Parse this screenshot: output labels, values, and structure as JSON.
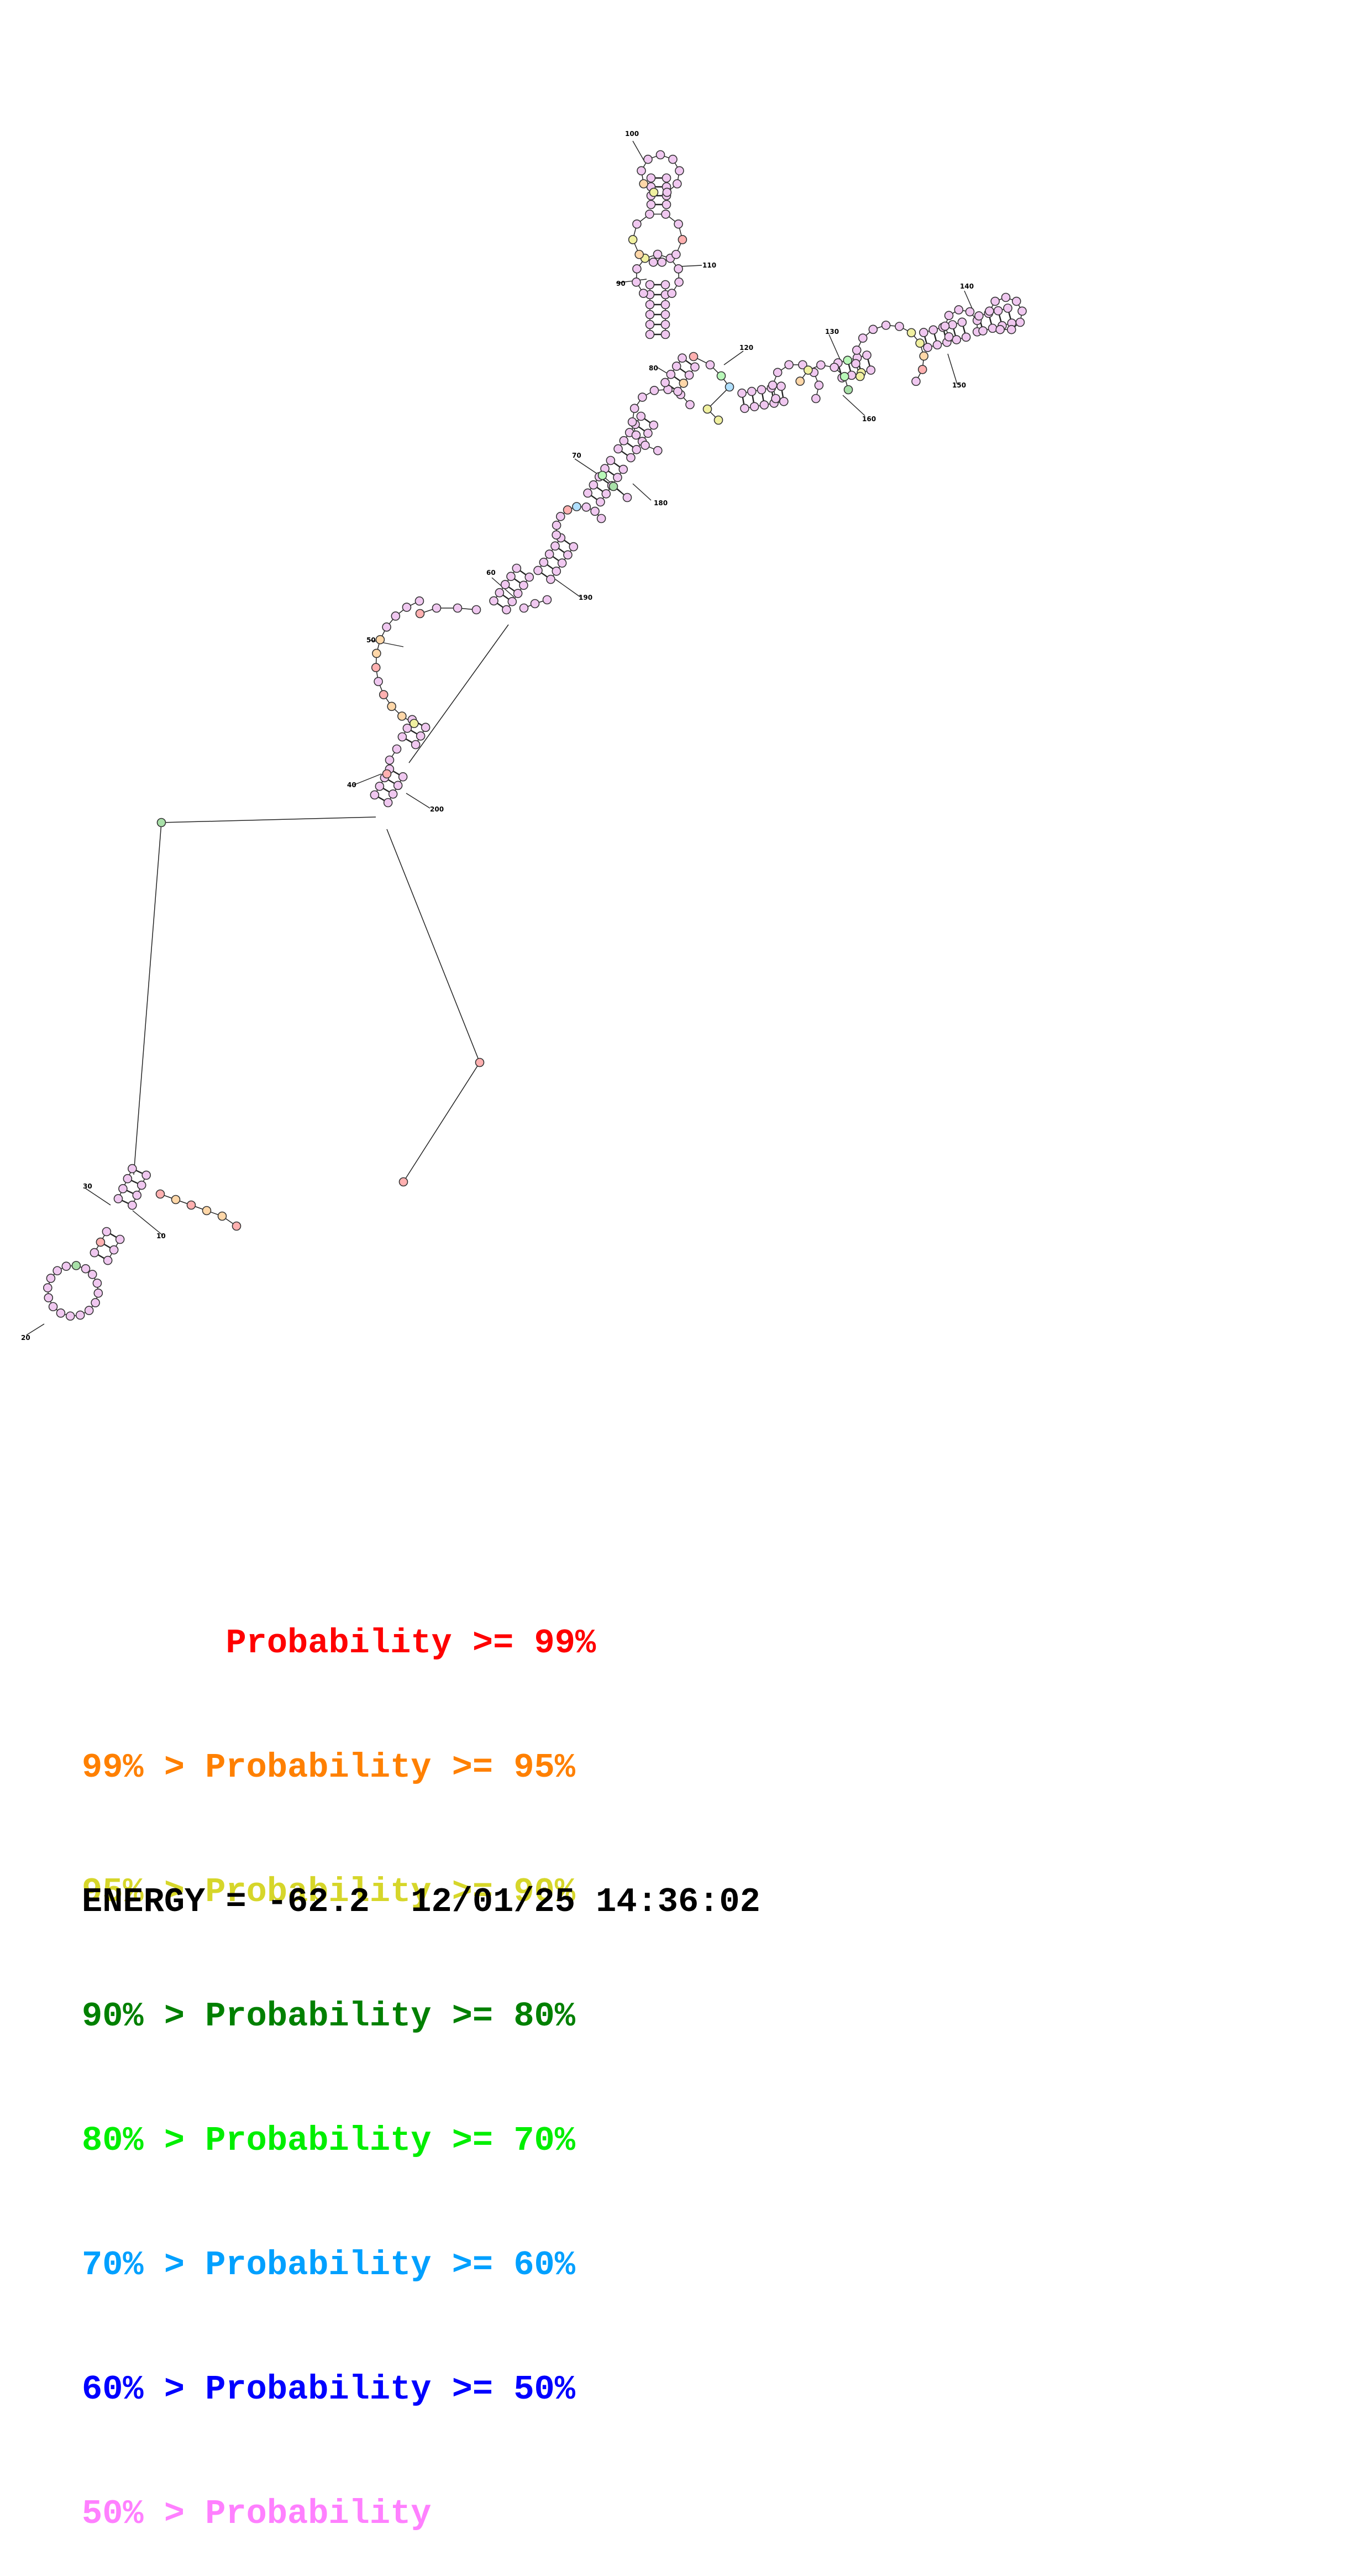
{
  "legend": [
    {
      "text": "       Probability >= 99%",
      "color": "#ff0000"
    },
    {
      "text": "99% > Probability >= 95%",
      "color": "#ff8000"
    },
    {
      "text": "95% > Probability >= 90%",
      "color": "#d6d62a"
    },
    {
      "text": "90% > Probability >= 80%",
      "color": "#008000"
    },
    {
      "text": "80% > Probability >= 70%",
      "color": "#00ee00"
    },
    {
      "text": "70% > Probability >= 60%",
      "color": "#00a0ff"
    },
    {
      "text": "60% > Probability >= 50%",
      "color": "#0000ff"
    },
    {
      "text": "50% > Probability",
      "color": "#ff80ff"
    }
  ],
  "energy_line": "ENERGY = -62.2  12/01/25 14:36:02",
  "position_labels": [
    "10",
    "20",
    "30",
    "40",
    "50",
    "60",
    "70",
    "80",
    "90",
    "100",
    "110",
    "120",
    "130",
    "140",
    "150",
    "160",
    "180",
    "190",
    "200"
  ]
}
